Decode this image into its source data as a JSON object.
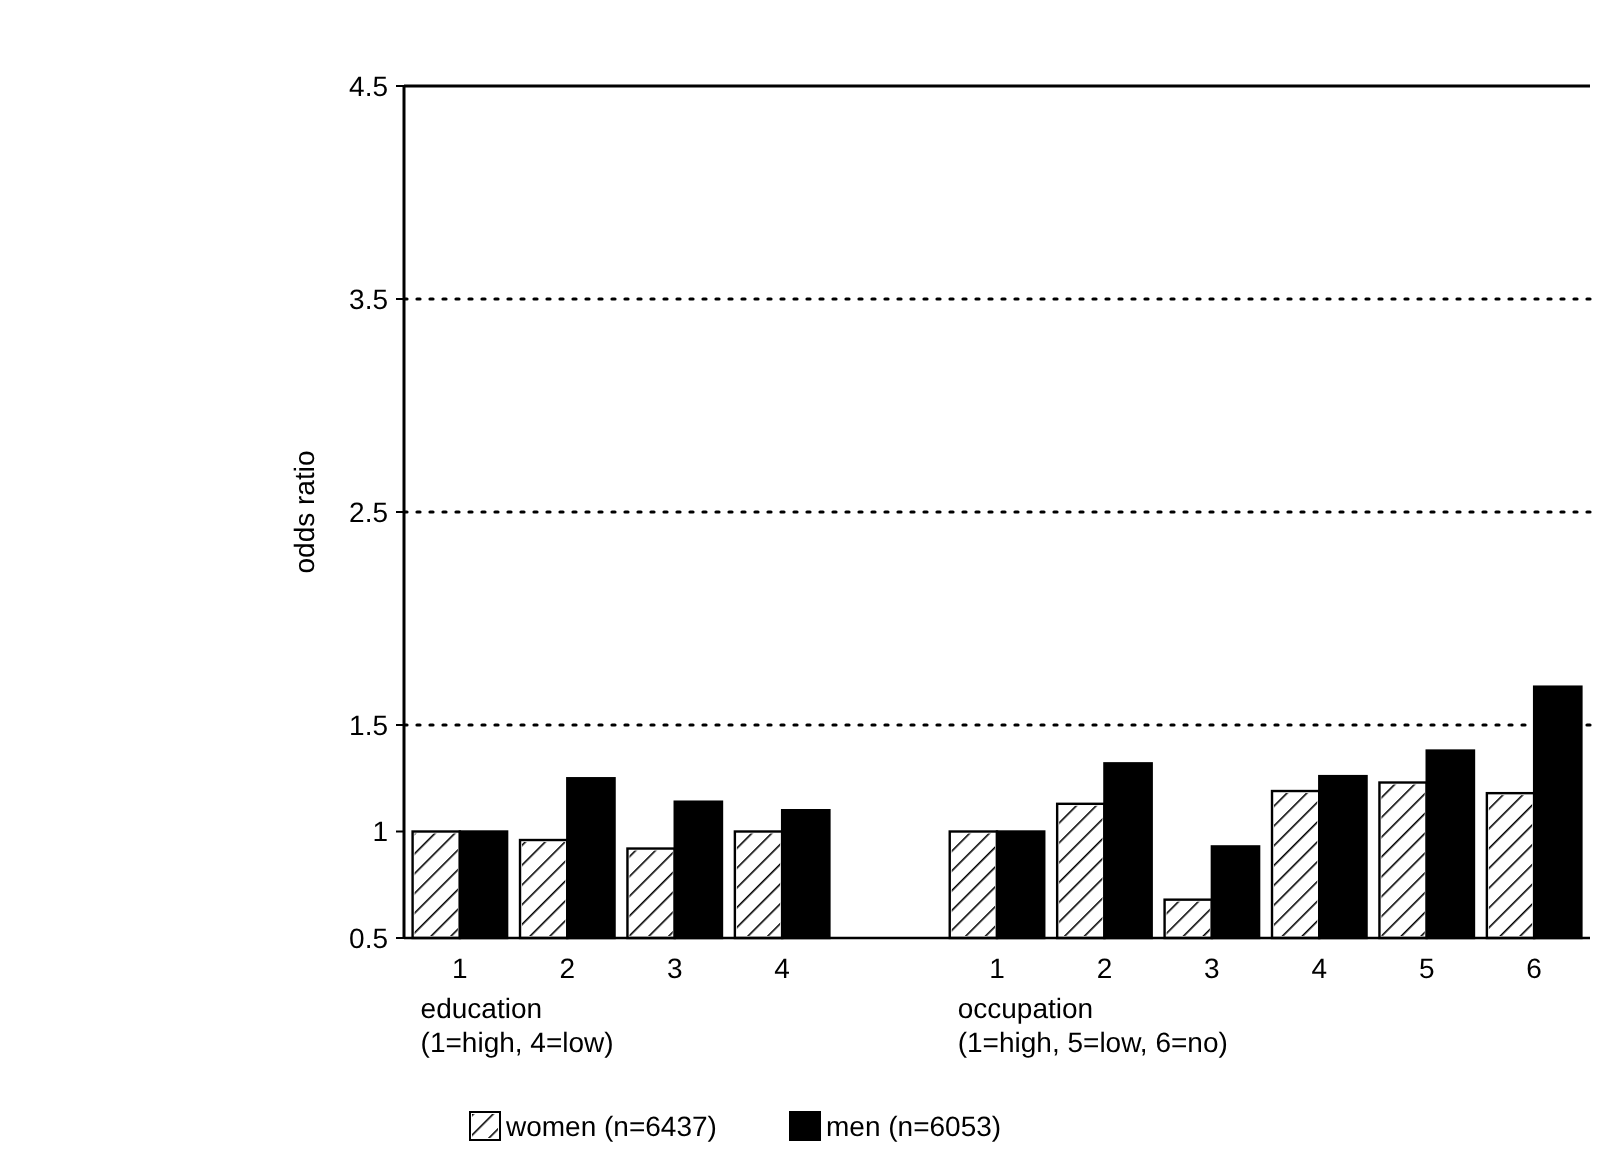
{
  "chart_data": {
    "type": "bar",
    "ylabel": "odds ratio",
    "categories": [
      "1",
      "2",
      "3",
      "4",
      null,
      "1",
      "2",
      "3",
      "4",
      "5",
      "6"
    ],
    "series": [
      {
        "name": "women (n=6437)",
        "color": "#ffffff",
        "values": [
          1.0,
          0.96,
          0.92,
          1.0,
          null,
          1.0,
          1.13,
          0.68,
          1.19,
          1.23,
          1.18
        ]
      },
      {
        "name": "men (n=6053)",
        "color": "#000000",
        "values": [
          1.0,
          1.25,
          1.14,
          1.1,
          null,
          1.0,
          1.32,
          0.93,
          1.26,
          1.38,
          1.68
        ]
      }
    ],
    "ylim": [
      0.5,
      4.5
    ],
    "yticks": [
      0.5,
      1,
      1.5,
      2.5,
      3.5,
      4.5
    ],
    "ref_lines": [
      {
        "axis": "y",
        "value": 1.5,
        "line_style": "dotted"
      },
      {
        "axis": "y",
        "value": 2.5,
        "line_style": "dotted"
      },
      {
        "axis": "y",
        "value": 3.5,
        "line_style": "dotted"
      }
    ],
    "annotations": [
      "education\n(1=high, 4=low)",
      "occupation\n(1=high, 5=low, 6=no)"
    ],
    "legend": "bottom"
  }
}
